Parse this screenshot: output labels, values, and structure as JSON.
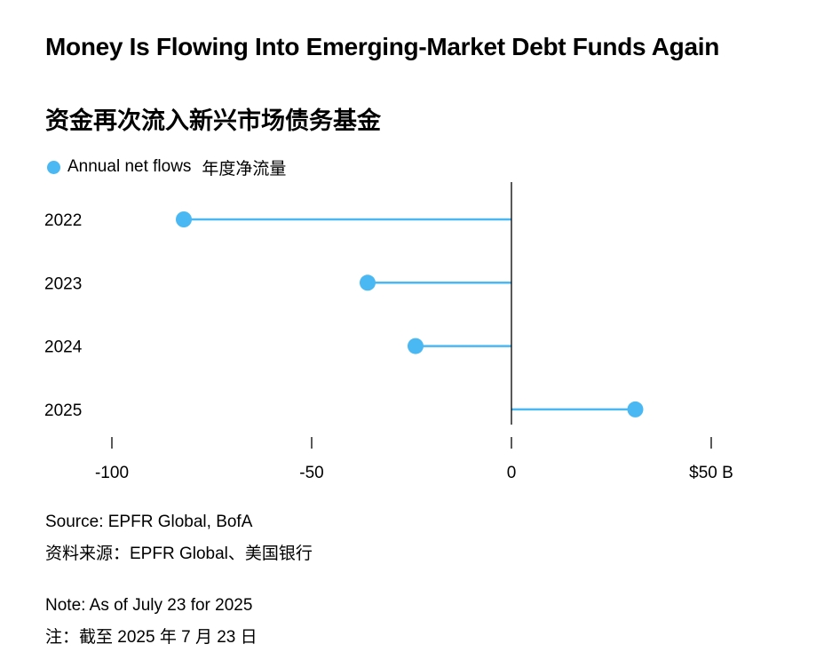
{
  "title": "Money Is Flowing Into Emerging-Market Debt Funds Again",
  "subtitle": "资金再次流入新兴市场债务基金",
  "legend": {
    "label": "Annual net flows",
    "label_zh": "年度净流量"
  },
  "source": "Source: EPFR Global, BofA",
  "source_zh": "资料来源：EPFR Global、美国银行",
  "note": "Note: As of July 23 for 2025",
  "note_zh": "注：截至 2025 年 7 月 23 日",
  "colors": {
    "series": "#4ab8f3",
    "axis": "#000000"
  },
  "chart_data": {
    "type": "lollipop",
    "orientation": "horizontal",
    "categories": [
      "2022",
      "2023",
      "2024",
      "2025"
    ],
    "series": [
      {
        "name": "Annual net flows 年度净流量",
        "values": [
          -82,
          -36,
          -24,
          31
        ]
      }
    ],
    "xlim": [
      -100,
      50
    ],
    "xticks": [
      {
        "value": -100,
        "label": "-100"
      },
      {
        "value": -50,
        "label": "-50"
      },
      {
        "value": 0,
        "label": "0"
      },
      {
        "value": 50,
        "label": "$50 B"
      }
    ],
    "xlabel": "",
    "ylabel": "",
    "unit": "$ B",
    "grid": false,
    "legend_position": "top-left"
  }
}
